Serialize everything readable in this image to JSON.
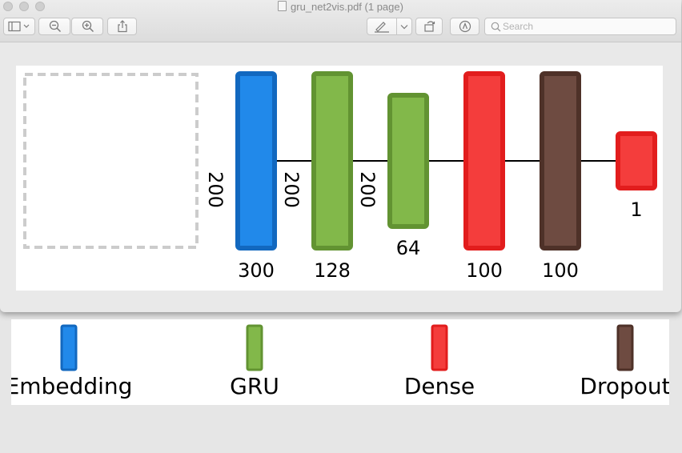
{
  "window": {
    "title": "gru_net2vis.pdf (1 page)"
  },
  "toolbar": {
    "search_placeholder": "Search"
  },
  "colors": {
    "embedding_fill": "#2189ea",
    "embedding_border": "#1268bf",
    "gru_fill": "#82b84a",
    "gru_border": "#629332",
    "dense_fill": "#f43d3c",
    "dense_border": "#e21d1d",
    "dropout_fill": "#6e4b41",
    "dropout_border": "#4e3128"
  },
  "diagram": {
    "input_placeholder": "dashed-box",
    "layers": [
      {
        "type": "embedding",
        "size_label": "300",
        "input_dim_label": "200"
      },
      {
        "type": "gru",
        "size_label": "128",
        "input_dim_label": "200"
      },
      {
        "type": "gru",
        "size_label": "64",
        "input_dim_label": "200"
      },
      {
        "type": "dense",
        "size_label": "100"
      },
      {
        "type": "dropout",
        "size_label": "100"
      },
      {
        "type": "dense",
        "size_label": "1"
      }
    ]
  },
  "legend": {
    "items": [
      {
        "type": "embedding",
        "label": "Embedding"
      },
      {
        "type": "gru",
        "label": "GRU"
      },
      {
        "type": "dense",
        "label": "Dense"
      },
      {
        "type": "dropout",
        "label": "Dropout"
      }
    ]
  }
}
